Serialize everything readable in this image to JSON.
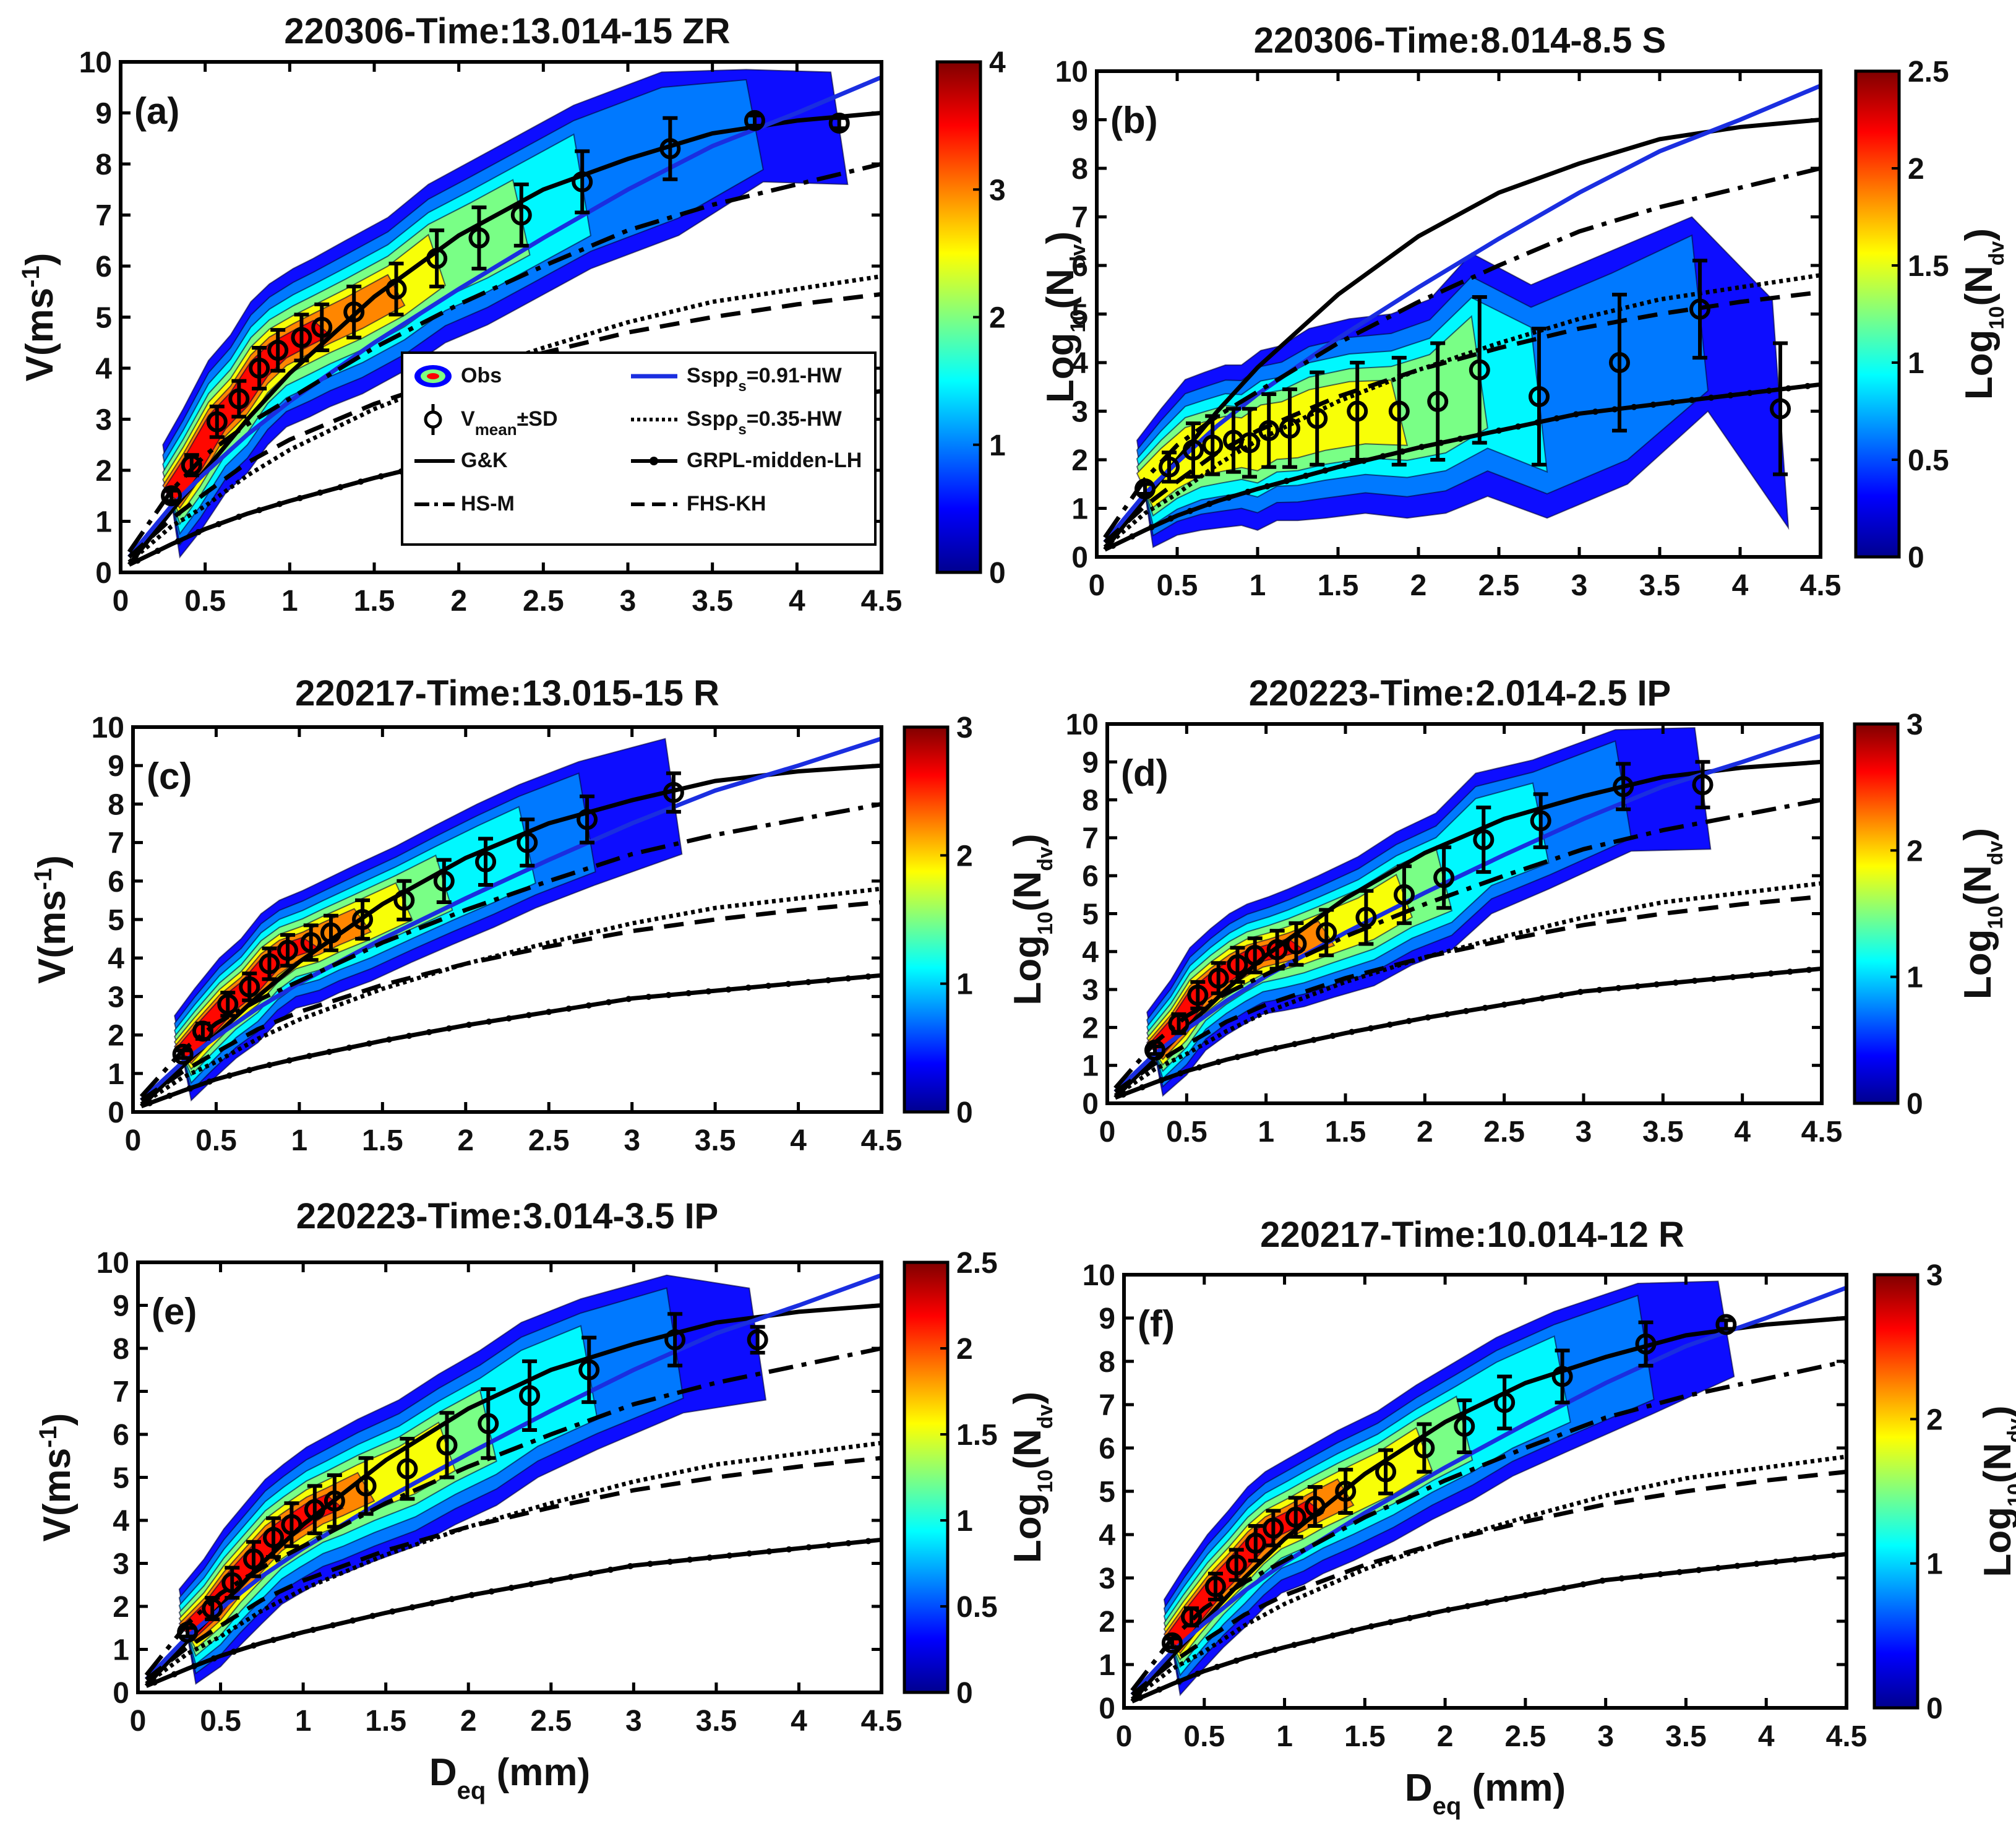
{
  "chart_data": {
    "type": "scatter",
    "figure": "Fall velocity vs equivalent diameter with contour density of observed particles",
    "xlabel_main": "D",
    "xlabel_sub": "eq",
    "xlabel_unit": "(mm)",
    "ylabel_main": "V(ms",
    "ylabel_sup": "-1",
    "ylabel_end": ")",
    "colorbar_label_main": "Log",
    "colorbar_label_sub1": "10",
    "colorbar_label_mid": "(N",
    "colorbar_label_sub2": "dv",
    "colorbar_label_end": ")",
    "xlim": [
      0,
      4.5
    ],
    "ylim": [
      0,
      10
    ],
    "xticks": [
      "0",
      "0.5",
      "1",
      "1.5",
      "2",
      "2.5",
      "3",
      "3.5",
      "4",
      "4.5"
    ],
    "yticks": [
      "0",
      "1",
      "2",
      "3",
      "4",
      "5",
      "6",
      "7",
      "8",
      "9",
      "10"
    ],
    "reference_curves": [
      {
        "key": "gk",
        "name": "G&K",
        "style": "solid",
        "color": "#000000",
        "x": [
          0.05,
          0.3,
          0.5,
          0.75,
          1,
          1.5,
          2,
          2.5,
          3,
          3.5,
          4,
          4.5
        ],
        "y": [
          0.15,
          1.2,
          2.0,
          3.0,
          3.9,
          5.4,
          6.6,
          7.5,
          8.1,
          8.6,
          8.85,
          9.0
        ]
      },
      {
        "key": "ssp091",
        "name": "Ssp",
        "name_sub": "ρ",
        "name_subsub": "s",
        "name_suffix": "=0.91-HW",
        "style": "solid",
        "color": "#1a2ee0",
        "x": [
          0.05,
          0.3,
          0.5,
          0.75,
          1,
          1.5,
          2,
          2.5,
          3,
          3.5,
          4,
          4.5
        ],
        "y": [
          0.3,
          1.3,
          1.95,
          2.7,
          3.35,
          4.5,
          5.55,
          6.55,
          7.5,
          8.35,
          9.0,
          9.7
        ]
      },
      {
        "key": "hsm",
        "name": "HS-M",
        "style": "dashdot",
        "color": "#000000",
        "x": [
          0.05,
          0.3,
          0.5,
          0.75,
          1,
          1.5,
          2,
          2.5,
          3,
          3.5,
          4,
          4.5
        ],
        "y": [
          0.4,
          1.6,
          2.3,
          2.9,
          3.4,
          4.4,
          5.25,
          6.0,
          6.7,
          7.2,
          7.6,
          8.0
        ]
      },
      {
        "key": "ssp035",
        "name": "Ssp",
        "name_sub": "ρ",
        "name_subsub": "s",
        "name_suffix": "=0.35-HW",
        "style": "dotted",
        "color": "#000000",
        "x": [
          0.05,
          0.3,
          0.5,
          0.75,
          1,
          1.5,
          2,
          2.5,
          3,
          3.5,
          4,
          4.5
        ],
        "y": [
          0.2,
          0.9,
          1.3,
          1.9,
          2.4,
          3.2,
          3.85,
          4.4,
          4.9,
          5.3,
          5.55,
          5.8
        ]
      },
      {
        "key": "fhskh",
        "name": "FHS-KH",
        "style": "dashed",
        "color": "#000000",
        "x": [
          0.05,
          0.3,
          0.5,
          0.75,
          1,
          1.5,
          2,
          2.5,
          3,
          3.5,
          4,
          4.5
        ],
        "y": [
          0.3,
          1.05,
          1.55,
          2.15,
          2.6,
          3.3,
          3.85,
          4.3,
          4.7,
          5.0,
          5.25,
          5.45
        ]
      },
      {
        "key": "grpl",
        "name": "GRPL-midden-LH",
        "style": "solid-dots",
        "color": "#000000",
        "x": [
          0.05,
          0.3,
          0.5,
          0.75,
          1,
          1.5,
          2,
          2.5,
          3,
          3.5,
          4,
          4.5
        ],
        "y": [
          0.15,
          0.55,
          0.85,
          1.15,
          1.4,
          1.85,
          2.25,
          2.6,
          2.95,
          3.15,
          3.35,
          3.55
        ]
      }
    ],
    "legend_obs": "Obs",
    "legend_vmean_main": "V",
    "legend_vmean_sub": "mean",
    "legend_vmean_end": "±SD",
    "panels": [
      {
        "tag": "(a)",
        "title": "220306-Time:13.014-15 ZR",
        "colorbar_max": 4,
        "colorbar_ticks": [
          "0",
          "1",
          "2",
          "3",
          "4"
        ],
        "vmean": [
          {
            "d": 0.3,
            "v": 1.5,
            "sd": 0.1
          },
          {
            "d": 0.42,
            "v": 2.1,
            "sd": 0.2
          },
          {
            "d": 0.57,
            "v": 2.95,
            "sd": 0.3
          },
          {
            "d": 0.7,
            "v": 3.4,
            "sd": 0.35
          },
          {
            "d": 0.82,
            "v": 4.0,
            "sd": 0.4
          },
          {
            "d": 0.93,
            "v": 4.35,
            "sd": 0.4
          },
          {
            "d": 1.07,
            "v": 4.6,
            "sd": 0.45
          },
          {
            "d": 1.19,
            "v": 4.8,
            "sd": 0.45
          },
          {
            "d": 1.38,
            "v": 5.1,
            "sd": 0.5
          },
          {
            "d": 1.63,
            "v": 5.55,
            "sd": 0.5
          },
          {
            "d": 1.87,
            "v": 6.15,
            "sd": 0.55
          },
          {
            "d": 2.12,
            "v": 6.55,
            "sd": 0.6
          },
          {
            "d": 2.37,
            "v": 7.0,
            "sd": 0.6
          },
          {
            "d": 2.73,
            "v": 7.65,
            "sd": 0.6
          },
          {
            "d": 3.25,
            "v": 8.3,
            "sd": 0.6
          },
          {
            "d": 3.75,
            "v": 8.85,
            "sd": 0.1
          },
          {
            "d": 4.25,
            "v": 8.8,
            "sd": 0.1
          }
        ]
      },
      {
        "tag": "(b)",
        "title": "220306-Time:8.014-8.5 S",
        "colorbar_max": 2.5,
        "colorbar_ticks": [
          "0",
          "0.5",
          "1",
          "1.5",
          "2",
          "2.5"
        ],
        "vmean": [
          {
            "d": 0.3,
            "v": 1.4,
            "sd": 0.1
          },
          {
            "d": 0.45,
            "v": 1.85,
            "sd": 0.3
          },
          {
            "d": 0.6,
            "v": 2.2,
            "sd": 0.55
          },
          {
            "d": 0.72,
            "v": 2.3,
            "sd": 0.6
          },
          {
            "d": 0.85,
            "v": 2.4,
            "sd": 0.65
          },
          {
            "d": 0.95,
            "v": 2.35,
            "sd": 0.7
          },
          {
            "d": 1.07,
            "v": 2.6,
            "sd": 0.75
          },
          {
            "d": 1.2,
            "v": 2.65,
            "sd": 0.8
          },
          {
            "d": 1.37,
            "v": 2.85,
            "sd": 0.95
          },
          {
            "d": 1.62,
            "v": 3.0,
            "sd": 1.0
          },
          {
            "d": 1.88,
            "v": 3.0,
            "sd": 1.1
          },
          {
            "d": 2.12,
            "v": 3.2,
            "sd": 1.2
          },
          {
            "d": 2.38,
            "v": 3.85,
            "sd": 1.5
          },
          {
            "d": 2.75,
            "v": 3.3,
            "sd": 1.4
          },
          {
            "d": 3.25,
            "v": 4.0,
            "sd": 1.4
          },
          {
            "d": 3.75,
            "v": 5.1,
            "sd": 1.0
          },
          {
            "d": 4.25,
            "v": 3.05,
            "sd": 1.35
          }
        ]
      },
      {
        "tag": "(c)",
        "title": "220217-Time:13.015-15 R",
        "colorbar_max": 3,
        "colorbar_ticks": [
          "0",
          "1",
          "2",
          "3"
        ],
        "vmean": [
          {
            "d": 0.3,
            "v": 1.5,
            "sd": 0.1
          },
          {
            "d": 0.42,
            "v": 2.1,
            "sd": 0.2
          },
          {
            "d": 0.57,
            "v": 2.8,
            "sd": 0.3
          },
          {
            "d": 0.7,
            "v": 3.25,
            "sd": 0.35
          },
          {
            "d": 0.82,
            "v": 3.85,
            "sd": 0.4
          },
          {
            "d": 0.93,
            "v": 4.2,
            "sd": 0.4
          },
          {
            "d": 1.07,
            "v": 4.4,
            "sd": 0.45
          },
          {
            "d": 1.19,
            "v": 4.65,
            "sd": 0.45
          },
          {
            "d": 1.38,
            "v": 5.0,
            "sd": 0.5
          },
          {
            "d": 1.63,
            "v": 5.5,
            "sd": 0.5
          },
          {
            "d": 1.87,
            "v": 6.0,
            "sd": 0.55
          },
          {
            "d": 2.12,
            "v": 6.5,
            "sd": 0.6
          },
          {
            "d": 2.37,
            "v": 7.0,
            "sd": 0.6
          },
          {
            "d": 2.73,
            "v": 7.6,
            "sd": 0.6
          },
          {
            "d": 3.25,
            "v": 8.3,
            "sd": 0.5
          }
        ]
      },
      {
        "tag": "(d)",
        "title": "220223-Time:2.014-2.5 IP",
        "colorbar_max": 3,
        "colorbar_ticks": [
          "0",
          "1",
          "2",
          "3"
        ],
        "vmean": [
          {
            "d": 0.3,
            "v": 1.4,
            "sd": 0.1
          },
          {
            "d": 0.45,
            "v": 2.1,
            "sd": 0.25
          },
          {
            "d": 0.57,
            "v": 2.85,
            "sd": 0.35
          },
          {
            "d": 0.7,
            "v": 3.3,
            "sd": 0.4
          },
          {
            "d": 0.82,
            "v": 3.65,
            "sd": 0.45
          },
          {
            "d": 0.93,
            "v": 3.9,
            "sd": 0.45
          },
          {
            "d": 1.07,
            "v": 4.05,
            "sd": 0.5
          },
          {
            "d": 1.19,
            "v": 4.2,
            "sd": 0.55
          },
          {
            "d": 1.38,
            "v": 4.5,
            "sd": 0.6
          },
          {
            "d": 1.63,
            "v": 4.9,
            "sd": 0.7
          },
          {
            "d": 1.87,
            "v": 5.5,
            "sd": 0.75
          },
          {
            "d": 2.12,
            "v": 5.95,
            "sd": 0.8
          },
          {
            "d": 2.37,
            "v": 6.95,
            "sd": 0.85
          },
          {
            "d": 2.73,
            "v": 7.45,
            "sd": 0.7
          },
          {
            "d": 3.25,
            "v": 8.35,
            "sd": 0.6
          },
          {
            "d": 3.75,
            "v": 8.4,
            "sd": 0.6
          }
        ]
      },
      {
        "tag": "(e)",
        "title": "220223-Time:3.014-3.5 IP",
        "colorbar_max": 2.5,
        "colorbar_ticks": [
          "0",
          "0.5",
          "1",
          "1.5",
          "2",
          "2.5"
        ],
        "vmean": [
          {
            "d": 0.3,
            "v": 1.4,
            "sd": 0.1
          },
          {
            "d": 0.45,
            "v": 1.95,
            "sd": 0.25
          },
          {
            "d": 0.57,
            "v": 2.55,
            "sd": 0.35
          },
          {
            "d": 0.7,
            "v": 3.1,
            "sd": 0.4
          },
          {
            "d": 0.82,
            "v": 3.6,
            "sd": 0.45
          },
          {
            "d": 0.93,
            "v": 3.9,
            "sd": 0.5
          },
          {
            "d": 1.07,
            "v": 4.25,
            "sd": 0.55
          },
          {
            "d": 1.19,
            "v": 4.45,
            "sd": 0.6
          },
          {
            "d": 1.38,
            "v": 4.8,
            "sd": 0.65
          },
          {
            "d": 1.63,
            "v": 5.2,
            "sd": 0.7
          },
          {
            "d": 1.87,
            "v": 5.75,
            "sd": 0.75
          },
          {
            "d": 2.12,
            "v": 6.25,
            "sd": 0.8
          },
          {
            "d": 2.37,
            "v": 6.9,
            "sd": 0.8
          },
          {
            "d": 2.73,
            "v": 7.5,
            "sd": 0.75
          },
          {
            "d": 3.25,
            "v": 8.2,
            "sd": 0.6
          },
          {
            "d": 3.75,
            "v": 8.2,
            "sd": 0.3
          }
        ]
      },
      {
        "tag": "(f)",
        "title": "220217-Time:10.014-12 R",
        "colorbar_max": 3,
        "colorbar_ticks": [
          "0",
          "1",
          "2",
          "3"
        ],
        "vmean": [
          {
            "d": 0.3,
            "v": 1.5,
            "sd": 0.1
          },
          {
            "d": 0.42,
            "v": 2.1,
            "sd": 0.2
          },
          {
            "d": 0.57,
            "v": 2.8,
            "sd": 0.3
          },
          {
            "d": 0.7,
            "v": 3.3,
            "sd": 0.35
          },
          {
            "d": 0.82,
            "v": 3.8,
            "sd": 0.4
          },
          {
            "d": 0.93,
            "v": 4.15,
            "sd": 0.4
          },
          {
            "d": 1.07,
            "v": 4.4,
            "sd": 0.45
          },
          {
            "d": 1.19,
            "v": 4.65,
            "sd": 0.45
          },
          {
            "d": 1.38,
            "v": 5.0,
            "sd": 0.5
          },
          {
            "d": 1.63,
            "v": 5.45,
            "sd": 0.5
          },
          {
            "d": 1.87,
            "v": 6.0,
            "sd": 0.55
          },
          {
            "d": 2.12,
            "v": 6.5,
            "sd": 0.6
          },
          {
            "d": 2.37,
            "v": 7.05,
            "sd": 0.6
          },
          {
            "d": 2.73,
            "v": 7.65,
            "sd": 0.6
          },
          {
            "d": 3.25,
            "v": 8.4,
            "sd": 0.5
          },
          {
            "d": 3.75,
            "v": 8.85,
            "sd": 0.1
          }
        ]
      }
    ]
  },
  "colors": {
    "colormap": [
      "#00008f",
      "#0000ff",
      "#0080ff",
      "#00ffff",
      "#80ff80",
      "#ffff00",
      "#ff8000",
      "#ff0000",
      "#800000"
    ],
    "axis": "#000000",
    "background": "#ffffff"
  }
}
